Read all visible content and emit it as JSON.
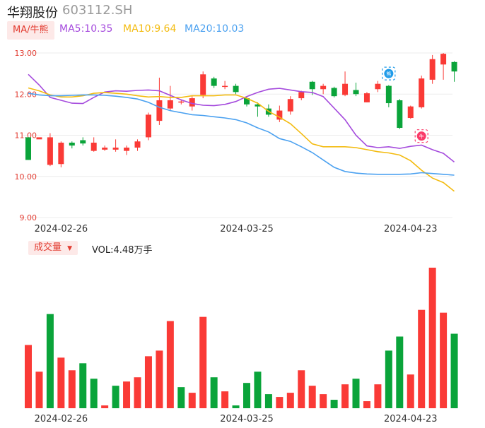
{
  "stock": {
    "name": "华翔股份",
    "code": "603112.SH"
  },
  "ma_legend": {
    "tag": "MA/牛熊",
    "ma5": "MA5:10.35",
    "ma10": "MA10:9.64",
    "ma20": "MA20:10.03"
  },
  "volume_legend": {
    "tag": "成交量",
    "vol": "VOL:4.48万手"
  },
  "colors": {
    "up": "#fa3a36",
    "down": "#0aa43a",
    "ma5": "#a54bdd",
    "ma10": "#f3bb10",
    "ma20": "#4ba1f0",
    "tag_bg": "#fde9e8",
    "tag_text": "#e23b30"
  },
  "icons": {
    "bull": "牛",
    "bear": "熊"
  },
  "chart_data": [
    {
      "type": "candlestick",
      "ylim": [
        9.0,
        13.0
      ],
      "yticks": [
        "13.00",
        "12.00",
        "11.00",
        "10.00",
        "9.00"
      ],
      "xticks": [
        {
          "index": 3,
          "label": "2024-02-26"
        },
        {
          "index": 20,
          "label": "2024-03-25"
        },
        {
          "index": 35,
          "label": "2024-04-23"
        }
      ],
      "ohlc": [
        [
          10.95,
          10.4,
          10.95,
          10.4
        ],
        [
          10.9,
          10.95,
          10.7,
          10.7
        ],
        [
          10.28,
          10.95,
          11.05,
          10.25
        ],
        [
          10.3,
          10.82,
          10.85,
          10.22
        ],
        [
          10.82,
          10.75,
          10.85,
          10.68
        ],
        [
          10.88,
          10.8,
          10.95,
          10.75
        ],
        [
          10.62,
          10.82,
          10.95,
          10.6
        ],
        [
          10.65,
          10.7,
          10.75,
          10.62
        ],
        [
          10.65,
          10.7,
          10.9,
          10.6
        ],
        [
          10.62,
          10.7,
          10.75,
          10.52
        ],
        [
          10.7,
          10.85,
          10.9,
          10.62
        ],
        [
          10.95,
          11.5,
          11.55,
          10.88
        ],
        [
          11.35,
          11.85,
          12.4,
          11.25
        ],
        [
          11.65,
          11.85,
          12.2,
          11.6
        ],
        [
          11.8,
          11.82,
          11.85,
          11.75
        ],
        [
          11.7,
          11.9,
          11.95,
          11.6
        ],
        [
          11.98,
          12.48,
          12.55,
          11.9
        ],
        [
          12.38,
          12.2,
          12.42,
          12.15
        ],
        [
          12.2,
          12.2,
          12.32,
          12.12
        ],
        [
          12.2,
          12.05,
          12.25,
          12.0
        ],
        [
          11.9,
          11.75,
          11.95,
          11.7
        ],
        [
          11.75,
          11.7,
          11.8,
          11.45
        ],
        [
          11.65,
          11.5,
          11.75,
          11.45
        ],
        [
          11.38,
          11.6,
          11.72,
          11.32
        ],
        [
          11.58,
          11.88,
          11.95,
          11.5
        ],
        [
          11.9,
          12.05,
          12.08,
          11.85
        ],
        [
          12.3,
          12.12,
          12.32,
          11.98
        ],
        [
          12.12,
          12.2,
          12.25,
          12.0
        ],
        [
          12.15,
          11.95,
          12.18,
          11.92
        ],
        [
          11.98,
          12.25,
          12.55,
          11.95
        ],
        [
          12.1,
          12.0,
          12.28,
          11.95
        ],
        [
          11.8,
          12.02,
          12.05,
          11.8
        ],
        [
          12.12,
          12.25,
          12.32,
          12.05
        ],
        [
          12.2,
          11.78,
          12.22,
          11.68
        ],
        [
          11.85,
          11.18,
          11.88,
          11.15
        ],
        [
          11.42,
          11.7,
          11.72,
          11.4
        ],
        [
          11.68,
          12.38,
          12.45,
          11.65
        ],
        [
          12.35,
          12.85,
          12.95,
          12.25
        ],
        [
          12.72,
          12.98,
          13.0,
          12.35
        ],
        [
          12.78,
          12.55,
          12.8,
          12.3
        ]
      ],
      "series": [
        {
          "name": "MA5",
          "values": [
            12.48,
            12.22,
            11.92,
            11.85,
            11.78,
            11.77,
            11.92,
            12.05,
            12.08,
            12.07,
            12.09,
            12.1,
            12.08,
            11.97,
            11.86,
            11.77,
            11.73,
            11.72,
            11.75,
            11.82,
            11.94,
            12.04,
            12.12,
            12.14,
            12.1,
            12.06,
            12.04,
            11.94,
            11.66,
            11.38,
            11.0,
            10.74,
            10.7,
            10.72,
            10.68,
            10.73,
            10.76,
            10.65,
            10.56,
            10.35
          ]
        },
        {
          "name": "MA10",
          "values": [
            12.15,
            12.08,
            11.98,
            11.93,
            11.93,
            11.96,
            12.02,
            12.04,
            12.02,
            12.0,
            11.96,
            11.93,
            11.94,
            11.92,
            11.92,
            11.96,
            11.96,
            11.96,
            11.98,
            11.98,
            11.9,
            11.78,
            11.58,
            11.44,
            11.28,
            11.04,
            10.79,
            10.72,
            10.72,
            10.72,
            10.7,
            10.65,
            10.6,
            10.57,
            10.52,
            10.38,
            10.15,
            9.96,
            9.85,
            9.64
          ]
        },
        {
          "name": "MA20",
          "values": [
            12.02,
            11.98,
            11.96,
            11.96,
            11.97,
            11.98,
            11.98,
            11.97,
            11.95,
            11.92,
            11.88,
            11.8,
            11.68,
            11.6,
            11.55,
            11.5,
            11.48,
            11.45,
            11.42,
            11.38,
            11.3,
            11.18,
            11.08,
            10.92,
            10.85,
            10.72,
            10.58,
            10.4,
            10.22,
            10.12,
            10.08,
            10.06,
            10.05,
            10.05,
            10.05,
            10.06,
            10.09,
            10.07,
            10.05,
            10.03
          ]
        }
      ]
    },
    {
      "type": "bar",
      "title": "成交量",
      "ylim": [
        0,
        1.0
      ],
      "values": [
        0.45,
        0.26,
        0.67,
        0.36,
        0.27,
        0.32,
        0.21,
        0.02,
        0.16,
        0.19,
        0.22,
        0.37,
        0.41,
        0.62,
        0.15,
        0.11,
        0.65,
        0.22,
        0.12,
        0.02,
        0.18,
        0.26,
        0.1,
        0.08,
        0.11,
        0.27,
        0.16,
        0.1,
        0.06,
        0.17,
        0.21,
        0.05,
        0.17,
        0.41,
        0.51,
        0.24,
        0.7,
        1.0,
        0.68,
        0.53
      ],
      "up": [
        1,
        1,
        0,
        1,
        1,
        0,
        0,
        1,
        0,
        1,
        1,
        1,
        1,
        1,
        0,
        1,
        1,
        0,
        1,
        0,
        0,
        0,
        0,
        1,
        1,
        1,
        1,
        1,
        0,
        1,
        0,
        1,
        1,
        0,
        0,
        1,
        1,
        1,
        1,
        0
      ],
      "xticks": [
        {
          "index": 3,
          "label": "2024-02-26"
        },
        {
          "index": 20,
          "label": "2024-03-25"
        },
        {
          "index": 35,
          "label": "2024-04-23"
        }
      ]
    }
  ]
}
